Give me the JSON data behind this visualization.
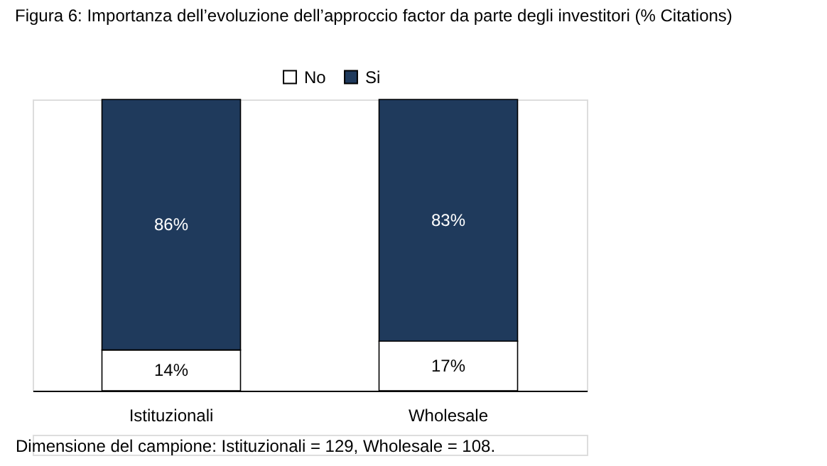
{
  "chart_data": {
    "type": "bar",
    "title": "Figura 6: Importanza dell’evoluzione dell’approccio factor da parte degli investitori (% Citations)",
    "categories": [
      "Istituzionali",
      "Wholesale"
    ],
    "series": [
      {
        "name": "No",
        "color": "#ffffff",
        "values": [
          14,
          17
        ],
        "value_labels": [
          "14%",
          "17%"
        ]
      },
      {
        "name": "Si",
        "color": "#1f3a5c",
        "values": [
          86,
          83
        ],
        "value_labels": [
          "86%",
          "83%"
        ]
      }
    ],
    "stacked": true,
    "legend": "top",
    "annotations": [
      "Dimensione del campione: Istituzionali = 129, Wholesale = 108."
    ]
  }
}
